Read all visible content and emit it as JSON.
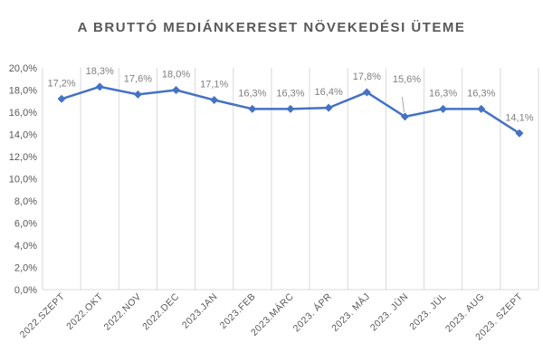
{
  "chart_data": {
    "type": "line",
    "title": "A BRUTTÓ MEDIÁNKERESET NÖVEKEDÉSI ÜTEME",
    "categories": [
      "2022.SZEPT",
      "2022.OKT",
      "2022.NOV",
      "2022.DEC",
      "2023.JAN",
      "2023.FEB",
      "2023.MÁRC",
      "2023. ÁPR",
      "2023. MÁJ",
      "2023. JÚN",
      "2023. JÚL",
      "2023. AUG",
      "2023. SZEPT"
    ],
    "values": [
      17.2,
      18.3,
      17.6,
      18.0,
      17.1,
      16.3,
      16.3,
      16.4,
      17.8,
      15.6,
      16.3,
      16.3,
      14.1
    ],
    "data_labels": [
      "17,2%",
      "18,3%",
      "17,6%",
      "18,0%",
      "17,1%",
      "16,3%",
      "16,3%",
      "16,4%",
      "17,8%",
      "15,6%",
      "16,3%",
      "16,3%",
      "14,1%"
    ],
    "y_ticks": [
      "0,0%",
      "2,0%",
      "4,0%",
      "6,0%",
      "8,0%",
      "10,0%",
      "12,0%",
      "14,0%",
      "16,0%",
      "18,0%",
      "20,0%"
    ],
    "ylim": [
      0,
      20
    ],
    "grid": "vertical category lines",
    "series_color": "#4472c4",
    "grid_color": "#d9d9d9",
    "text_color": "#595959"
  }
}
